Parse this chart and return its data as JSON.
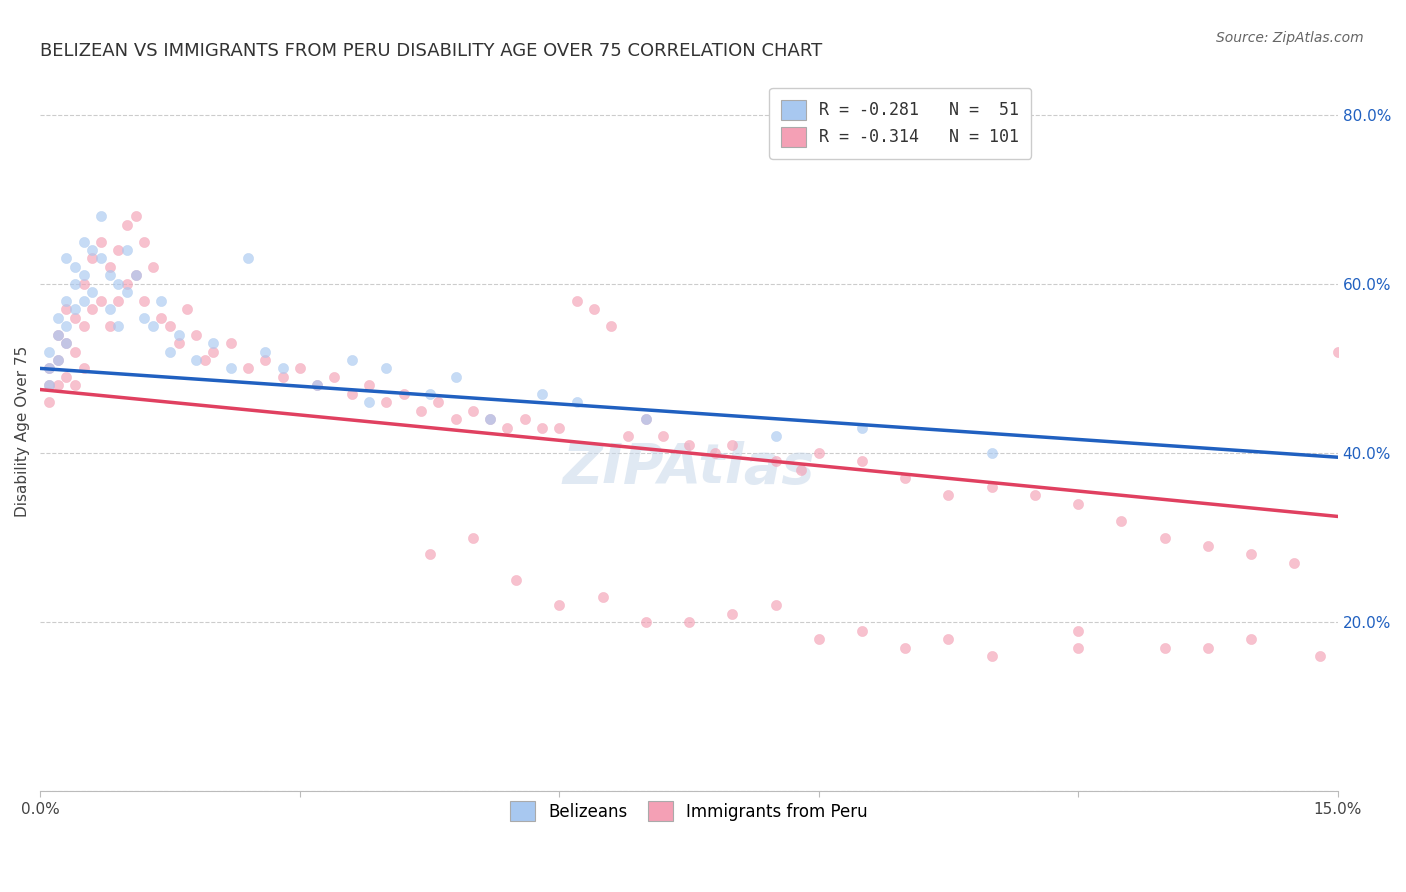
{
  "title": "BELIZEAN VS IMMIGRANTS FROM PERU DISABILITY AGE OVER 75 CORRELATION CHART",
  "source": "Source: ZipAtlas.com",
  "ylabel": "Disability Age Over 75",
  "x_min": 0.0,
  "x_max": 0.15,
  "y_min": 0.0,
  "y_max": 0.85,
  "x_ticks": [
    0.0,
    0.03,
    0.06,
    0.09,
    0.12,
    0.15
  ],
  "x_tick_labels": [
    "0.0%",
    "",
    "",
    "",
    "",
    "15.0%"
  ],
  "y_ticks": [
    0.0,
    0.2,
    0.4,
    0.6,
    0.8
  ],
  "y_tick_labels": [
    "",
    "20.0%",
    "40.0%",
    "60.0%",
    "80.0%"
  ],
  "legend_label1": "R = -0.281   N =  51",
  "legend_label2": "R = -0.314   N = 101",
  "color_belizean": "#A8C8F0",
  "color_peru": "#F4A0B5",
  "line_color_belizean": "#2060C0",
  "line_color_peru": "#E04060",
  "legend_color1": "#A8C8F0",
  "legend_color2": "#F4A0B5",
  "watermark": "ZIPAtlas",
  "background_color": "#FFFFFF",
  "grid_color": "#CCCCCC",
  "title_fontsize": 13,
  "axis_label_fontsize": 11,
  "tick_fontsize": 11,
  "legend_fontsize": 12,
  "source_fontsize": 10,
  "scatter_size": 55,
  "scatter_alpha": 0.65,
  "trendline_blue_x0": 0.0,
  "trendline_blue_y0": 0.5,
  "trendline_blue_x1": 0.15,
  "trendline_blue_y1": 0.395,
  "trendline_pink_x0": 0.0,
  "trendline_pink_y0": 0.475,
  "trendline_pink_x1": 0.15,
  "trendline_pink_y1": 0.325,
  "belizean_x": [
    0.001,
    0.001,
    0.001,
    0.002,
    0.002,
    0.002,
    0.003,
    0.003,
    0.003,
    0.003,
    0.004,
    0.004,
    0.004,
    0.005,
    0.005,
    0.005,
    0.006,
    0.006,
    0.007,
    0.007,
    0.008,
    0.008,
    0.009,
    0.009,
    0.01,
    0.01,
    0.011,
    0.012,
    0.013,
    0.014,
    0.015,
    0.016,
    0.018,
    0.02,
    0.022,
    0.024,
    0.026,
    0.028,
    0.032,
    0.036,
    0.038,
    0.04,
    0.045,
    0.048,
    0.052,
    0.058,
    0.062,
    0.07,
    0.085,
    0.095,
    0.11
  ],
  "belizean_y": [
    0.5,
    0.52,
    0.48,
    0.56,
    0.54,
    0.51,
    0.63,
    0.58,
    0.55,
    0.53,
    0.62,
    0.6,
    0.57,
    0.65,
    0.61,
    0.58,
    0.64,
    0.59,
    0.68,
    0.63,
    0.61,
    0.57,
    0.6,
    0.55,
    0.64,
    0.59,
    0.61,
    0.56,
    0.55,
    0.58,
    0.52,
    0.54,
    0.51,
    0.53,
    0.5,
    0.63,
    0.52,
    0.5,
    0.48,
    0.51,
    0.46,
    0.5,
    0.47,
    0.49,
    0.44,
    0.47,
    0.46,
    0.44,
    0.42,
    0.43,
    0.4
  ],
  "peru_x": [
    0.001,
    0.001,
    0.001,
    0.002,
    0.002,
    0.002,
    0.003,
    0.003,
    0.003,
    0.004,
    0.004,
    0.004,
    0.005,
    0.005,
    0.005,
    0.006,
    0.006,
    0.007,
    0.007,
    0.008,
    0.008,
    0.009,
    0.009,
    0.01,
    0.01,
    0.011,
    0.011,
    0.012,
    0.012,
    0.013,
    0.014,
    0.015,
    0.016,
    0.017,
    0.018,
    0.019,
    0.02,
    0.022,
    0.024,
    0.026,
    0.028,
    0.03,
    0.032,
    0.034,
    0.036,
    0.038,
    0.04,
    0.042,
    0.044,
    0.046,
    0.048,
    0.05,
    0.052,
    0.054,
    0.056,
    0.058,
    0.06,
    0.062,
    0.064,
    0.066,
    0.068,
    0.07,
    0.072,
    0.075,
    0.078,
    0.08,
    0.085,
    0.088,
    0.09,
    0.095,
    0.1,
    0.105,
    0.11,
    0.115,
    0.12,
    0.125,
    0.13,
    0.135,
    0.14,
    0.145,
    0.05,
    0.06,
    0.07,
    0.08,
    0.09,
    0.1,
    0.11,
    0.12,
    0.13,
    0.14,
    0.045,
    0.055,
    0.065,
    0.075,
    0.085,
    0.095,
    0.105,
    0.12,
    0.135,
    0.148,
    0.15
  ],
  "peru_y": [
    0.5,
    0.48,
    0.46,
    0.54,
    0.51,
    0.48,
    0.57,
    0.53,
    0.49,
    0.56,
    0.52,
    0.48,
    0.6,
    0.55,
    0.5,
    0.63,
    0.57,
    0.65,
    0.58,
    0.62,
    0.55,
    0.64,
    0.58,
    0.67,
    0.6,
    0.68,
    0.61,
    0.65,
    0.58,
    0.62,
    0.56,
    0.55,
    0.53,
    0.57,
    0.54,
    0.51,
    0.52,
    0.53,
    0.5,
    0.51,
    0.49,
    0.5,
    0.48,
    0.49,
    0.47,
    0.48,
    0.46,
    0.47,
    0.45,
    0.46,
    0.44,
    0.45,
    0.44,
    0.43,
    0.44,
    0.43,
    0.43,
    0.58,
    0.57,
    0.55,
    0.42,
    0.44,
    0.42,
    0.41,
    0.4,
    0.41,
    0.39,
    0.38,
    0.4,
    0.39,
    0.37,
    0.35,
    0.36,
    0.35,
    0.34,
    0.32,
    0.3,
    0.29,
    0.28,
    0.27,
    0.3,
    0.22,
    0.2,
    0.21,
    0.18,
    0.17,
    0.16,
    0.19,
    0.17,
    0.18,
    0.28,
    0.25,
    0.23,
    0.2,
    0.22,
    0.19,
    0.18,
    0.17,
    0.17,
    0.16,
    0.52
  ]
}
